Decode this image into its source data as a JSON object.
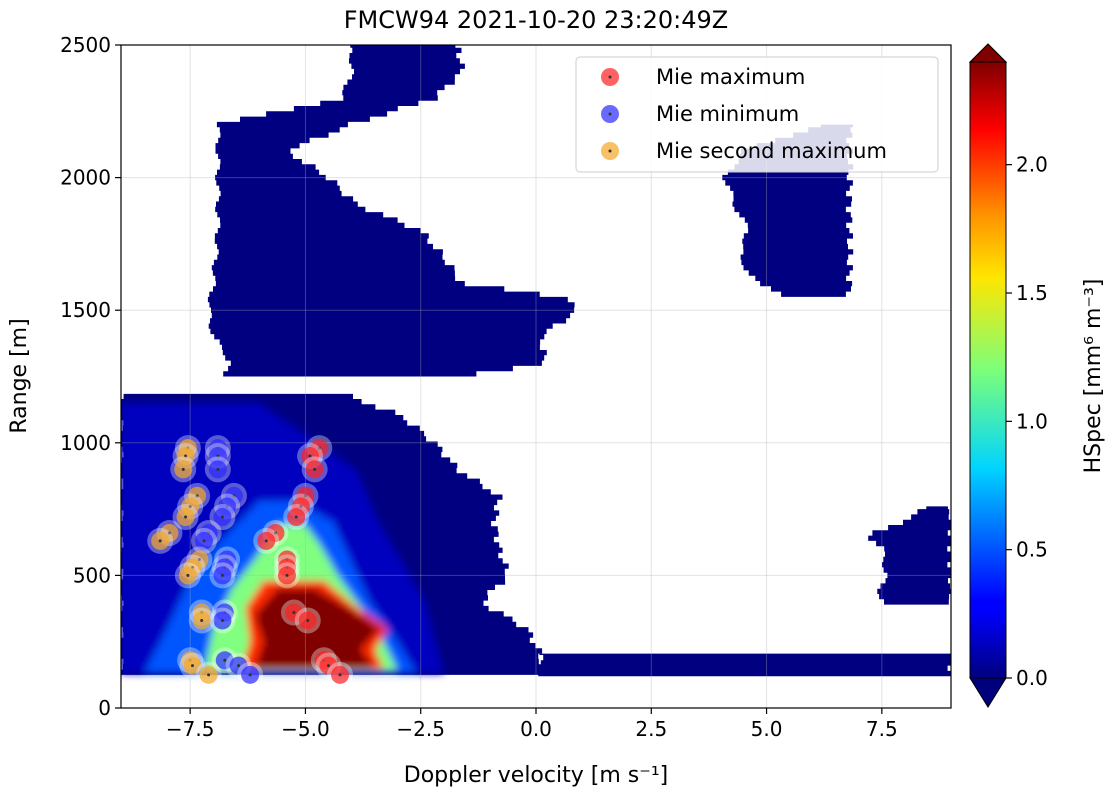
{
  "chart_data": {
    "type": "heatmap",
    "title": "FMCW94 2021-10-20 23:20:49Z",
    "xlabel": "Doppler velocity [m s⁻¹]",
    "ylabel": "Range [m]",
    "xlim": [
      -9.0,
      9.0
    ],
    "ylim": [
      0,
      2500
    ],
    "xticks": [
      -7.5,
      -5.0,
      -2.5,
      0.0,
      2.5,
      5.0,
      7.5
    ],
    "xtick_labels": [
      "−7.5",
      "−5.0",
      "−2.5",
      "0.0",
      "2.5",
      "5.0",
      "7.5"
    ],
    "yticks": [
      0,
      500,
      1000,
      1500,
      2000,
      2500
    ],
    "ytick_labels": [
      "0",
      "500",
      "1000",
      "1500",
      "2000",
      "2500"
    ],
    "grid": true,
    "colorbar": {
      "label": "HSpec [mm⁶ m⁻³]",
      "range": [
        0.0,
        2.4
      ],
      "ticks": [
        0.0,
        0.5,
        1.0,
        1.5,
        2.0
      ],
      "tick_labels": [
        "0.0",
        "0.5",
        "1.0",
        "1.5",
        "2.0"
      ],
      "colormap": "jet",
      "extend": "both"
    },
    "legend": {
      "placement": "top-right",
      "entries": [
        {
          "label": "Mie maximum",
          "color": "#ff2020"
        },
        {
          "label": "Mie minimum",
          "color": "#2a2aff"
        },
        {
          "label": "Mie second maximum",
          "color": "#f5a623"
        }
      ]
    },
    "nodata_gap": {
      "range": [
        1185,
        1245
      ]
    },
    "echo_regions": [
      {
        "name": "upper-cloud",
        "value": 0.0,
        "range": [
          1250,
          2500
        ],
        "left": [
          [
            1250,
            -6.9
          ],
          [
            1300,
            -6.6
          ],
          [
            1400,
            -7.0
          ],
          [
            1500,
            -7.1
          ],
          [
            1600,
            -7.0
          ],
          [
            1800,
            -6.9
          ],
          [
            2000,
            -6.9
          ],
          [
            2200,
            -6.9
          ],
          [
            2300,
            -4.2
          ],
          [
            2400,
            -4.0
          ],
          [
            2500,
            -4.0
          ]
        ],
        "right": [
          [
            1250,
            -1.7
          ],
          [
            1300,
            0.2
          ],
          [
            1400,
            0.1
          ],
          [
            1500,
            0.9
          ],
          [
            1550,
            0.6
          ],
          [
            1600,
            -1.6
          ],
          [
            1700,
            -2.0
          ],
          [
            1800,
            -2.5
          ],
          [
            1900,
            -3.9
          ],
          [
            2000,
            -4.5
          ],
          [
            2100,
            -5.4
          ],
          [
            2200,
            -4.0
          ],
          [
            2300,
            -2.2
          ],
          [
            2400,
            -1.6
          ],
          [
            2500,
            -1.7
          ]
        ]
      },
      {
        "name": "lower-cloud",
        "value": 0.0,
        "range": [
          125,
          1185
        ],
        "left": [
          [
            125,
            -9.0
          ],
          [
            1185,
            -9.0
          ]
        ],
        "right": [
          [
            125,
            0.1
          ],
          [
            200,
            0.1
          ],
          [
            300,
            -0.2
          ],
          [
            400,
            -1.2
          ],
          [
            500,
            -0.6
          ],
          [
            600,
            -0.8
          ],
          [
            700,
            -0.9
          ],
          [
            800,
            -0.8
          ],
          [
            900,
            -1.7
          ],
          [
            1000,
            -2.2
          ],
          [
            1100,
            -2.9
          ],
          [
            1185,
            -4.2
          ]
        ]
      },
      {
        "name": "surface-clutter",
        "value": 0.0,
        "range": [
          120,
          205
        ],
        "left": [
          [
            120,
            0.1
          ],
          [
            205,
            0.1
          ]
        ],
        "right": [
          [
            120,
            9.0
          ],
          [
            205,
            9.0
          ]
        ]
      },
      {
        "name": "right-echo-high",
        "value": 0.0,
        "range": [
          1550,
          2200
        ],
        "left": [
          [
            1550,
            5.5
          ],
          [
            1600,
            4.8
          ],
          [
            1700,
            4.4
          ],
          [
            1800,
            4.6
          ],
          [
            1900,
            4.3
          ],
          [
            2000,
            4.1
          ],
          [
            2100,
            4.5
          ],
          [
            2200,
            6.2
          ]
        ],
        "right": [
          [
            1550,
            6.8
          ],
          [
            2200,
            6.8
          ]
        ]
      },
      {
        "name": "right-echo-low",
        "value": 0.0,
        "range": [
          390,
          760
        ],
        "left": [
          [
            390,
            7.6
          ],
          [
            450,
            7.4
          ],
          [
            500,
            7.6
          ],
          [
            600,
            7.5
          ],
          [
            650,
            7.2
          ],
          [
            700,
            7.9
          ],
          [
            760,
            8.5
          ]
        ],
        "right": [
          [
            390,
            9.0
          ],
          [
            760,
            9.0
          ]
        ]
      }
    ],
    "intensity_regions": [
      {
        "name": "weak-echo",
        "value": 0.15,
        "range": [
          130,
          1150
        ],
        "left": [
          [
            130,
            -9.0
          ],
          [
            1150,
            -9.0
          ]
        ],
        "right": [
          [
            130,
            -2.0
          ],
          [
            400,
            -2.4
          ],
          [
            700,
            -3.4
          ],
          [
            900,
            -3.9
          ],
          [
            1150,
            -6.0
          ]
        ]
      },
      {
        "name": "enhanced-echo",
        "value": 0.5,
        "range": [
          130,
          780
        ],
        "left": [
          [
            130,
            -8.5
          ],
          [
            300,
            -8.0
          ],
          [
            450,
            -7.6
          ],
          [
            600,
            -7.0
          ],
          [
            780,
            -6.0
          ]
        ],
        "right": [
          [
            130,
            -2.6
          ],
          [
            250,
            -3.0
          ],
          [
            400,
            -3.6
          ],
          [
            550,
            -4.0
          ],
          [
            700,
            -4.4
          ],
          [
            780,
            -5.2
          ]
        ]
      },
      {
        "name": "moderate-echo",
        "value": 1.2,
        "range": [
          140,
          690
        ],
        "left": [
          [
            140,
            -7.2
          ],
          [
            300,
            -7.0
          ],
          [
            450,
            -6.6
          ],
          [
            560,
            -6.1
          ],
          [
            690,
            -5.6
          ]
        ],
        "right": [
          [
            140,
            -3.0
          ],
          [
            250,
            -3.3
          ],
          [
            380,
            -3.8
          ],
          [
            500,
            -4.3
          ],
          [
            620,
            -4.7
          ],
          [
            690,
            -5.0
          ]
        ]
      },
      {
        "name": "strong-echo",
        "value": 2.0,
        "range": [
          145,
          480
        ],
        "left": [
          [
            145,
            -6.4
          ],
          [
            250,
            -6.2
          ],
          [
            380,
            -6.3
          ],
          [
            480,
            -5.9
          ]
        ],
        "right": [
          [
            145,
            -3.3
          ],
          [
            220,
            -3.5
          ],
          [
            300,
            -3.2
          ],
          [
            380,
            -3.9
          ],
          [
            480,
            -4.6
          ]
        ]
      },
      {
        "name": "peak-echo",
        "value": 2.4,
        "range": [
          150,
          450
        ],
        "left": [
          [
            150,
            -6.1
          ],
          [
            250,
            -5.9
          ],
          [
            350,
            -6.1
          ],
          [
            450,
            -5.6
          ]
        ],
        "right": [
          [
            150,
            -3.5
          ],
          [
            220,
            -3.8
          ],
          [
            300,
            -3.4
          ],
          [
            380,
            -4.1
          ],
          [
            450,
            -4.8
          ]
        ]
      }
    ],
    "series": [
      {
        "name": "Mie maximum",
        "color": "#ff2020",
        "points": [
          [
            -4.7,
            980
          ],
          [
            -4.9,
            950
          ],
          [
            -4.8,
            900
          ],
          [
            -5.0,
            800
          ],
          [
            -5.1,
            760
          ],
          [
            -5.2,
            720
          ],
          [
            -5.65,
            660
          ],
          [
            -5.85,
            630
          ],
          [
            -5.4,
            560
          ],
          [
            -5.4,
            530
          ],
          [
            -5.4,
            500
          ],
          [
            -5.25,
            360
          ],
          [
            -4.95,
            330
          ],
          [
            -4.6,
            180
          ],
          [
            -4.5,
            160
          ],
          [
            -4.25,
            125
          ]
        ]
      },
      {
        "name": "Mie minimum",
        "color": "#2a2aff",
        "points": [
          [
            -6.9,
            980
          ],
          [
            -6.9,
            950
          ],
          [
            -6.9,
            900
          ],
          [
            -6.55,
            800
          ],
          [
            -6.7,
            760
          ],
          [
            -6.8,
            720
          ],
          [
            -7.1,
            660
          ],
          [
            -7.2,
            630
          ],
          [
            -6.7,
            560
          ],
          [
            -6.75,
            530
          ],
          [
            -6.8,
            500
          ],
          [
            -6.75,
            360
          ],
          [
            -6.8,
            330
          ],
          [
            -6.75,
            180
          ],
          [
            -6.45,
            160
          ],
          [
            -6.2,
            125
          ]
        ]
      },
      {
        "name": "Mie second maximum",
        "color": "#f5a623",
        "points": [
          [
            -7.55,
            980
          ],
          [
            -7.6,
            950
          ],
          [
            -7.65,
            900
          ],
          [
            -7.35,
            800
          ],
          [
            -7.5,
            760
          ],
          [
            -7.6,
            720
          ],
          [
            -7.95,
            660
          ],
          [
            -8.15,
            630
          ],
          [
            -7.3,
            560
          ],
          [
            -7.45,
            530
          ],
          [
            -7.55,
            500
          ],
          [
            -7.25,
            360
          ],
          [
            -7.25,
            330
          ],
          [
            -7.5,
            180
          ],
          [
            -7.45,
            160
          ],
          [
            -7.1,
            125
          ]
        ]
      }
    ]
  }
}
